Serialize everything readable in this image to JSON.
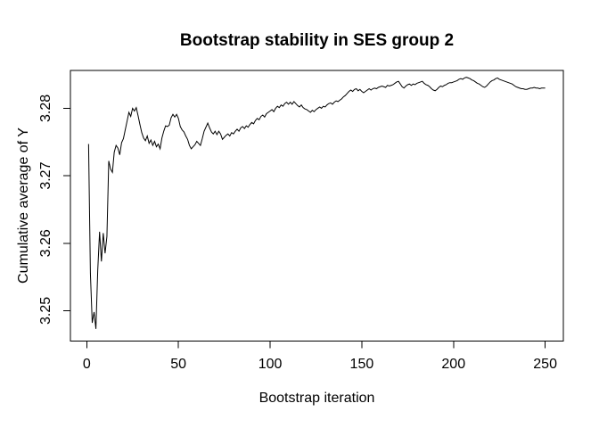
{
  "chart_data": {
    "type": "line",
    "title": "Bootstrap stability in SES group 2",
    "xlabel": "Bootstrap iteration",
    "ylabel": "Cumulative average of Y",
    "x_ticks": [
      0,
      50,
      100,
      150,
      200,
      250
    ],
    "y_ticks": [
      3.25,
      3.26,
      3.27,
      3.28
    ],
    "xlim": [
      -8.9,
      259.9
    ],
    "ylim": [
      3.2455,
      3.28561
    ],
    "grid": false,
    "legend": "none",
    "line_color": "#000000",
    "background_color": "#ffffff",
    "x_start": 1,
    "series": [
      {
        "name": "cumulative average of Y",
        "values": [
          3.2747,
          3.2555,
          3.2482,
          3.2498,
          3.2473,
          3.256,
          3.2617,
          3.2573,
          3.2615,
          3.2585,
          3.261,
          3.2722,
          3.271,
          3.2705,
          3.2735,
          3.2745,
          3.2741,
          3.2731,
          3.2749,
          3.2755,
          3.2768,
          3.2781,
          3.2794,
          3.2788,
          3.28,
          3.2796,
          3.2801,
          3.2789,
          3.2776,
          3.2764,
          3.2756,
          3.2752,
          3.2759,
          3.2748,
          3.2753,
          3.2745,
          3.2751,
          3.2743,
          3.2747,
          3.274,
          3.2756,
          3.2766,
          3.2774,
          3.2773,
          3.2775,
          3.2786,
          3.2791,
          3.2787,
          3.2791,
          3.2785,
          3.2773,
          3.2768,
          3.2765,
          3.2759,
          3.2754,
          3.2745,
          3.274,
          3.2743,
          3.2746,
          3.2751,
          3.2748,
          3.2745,
          3.2755,
          3.2766,
          3.2772,
          3.2778,
          3.2771,
          3.2765,
          3.2762,
          3.2766,
          3.2761,
          3.2766,
          3.2762,
          3.2754,
          3.2757,
          3.276,
          3.2762,
          3.2759,
          3.2764,
          3.2762,
          3.2766,
          3.2769,
          3.2766,
          3.2771,
          3.2773,
          3.277,
          3.2774,
          3.2772,
          3.2776,
          3.2779,
          3.2777,
          3.2782,
          3.2785,
          3.2783,
          3.2788,
          3.279,
          3.2787,
          3.2792,
          3.2794,
          3.2796,
          3.2798,
          3.2795,
          3.28,
          3.2803,
          3.2801,
          3.2805,
          3.2803,
          3.2807,
          3.2809,
          3.2806,
          3.2809,
          3.2806,
          3.281,
          3.2807,
          3.2804,
          3.2802,
          3.2805,
          3.2801,
          3.2799,
          3.2798,
          3.2796,
          3.2794,
          3.2797,
          3.2795,
          3.2798,
          3.28,
          3.2802,
          3.28,
          3.2803,
          3.2802,
          3.2805,
          3.2807,
          3.2808,
          3.2806,
          3.2809,
          3.2811,
          3.281,
          3.2812,
          3.2814,
          3.2817,
          3.2819,
          3.2822,
          3.2825,
          3.2827,
          3.2825,
          3.2828,
          3.2829,
          3.2826,
          3.2828,
          3.2825,
          3.2823,
          3.2825,
          3.2827,
          3.2829,
          3.2827,
          3.2829,
          3.283,
          3.2829,
          3.2831,
          3.2832,
          3.2833,
          3.2832,
          3.2831,
          3.2834,
          3.2833,
          3.2834,
          3.2835,
          3.2837,
          3.2839,
          3.284,
          3.2836,
          3.2832,
          3.283,
          3.2833,
          3.2835,
          3.2836,
          3.2834,
          3.2836,
          3.2835,
          3.2837,
          3.2838,
          3.2839,
          3.284,
          3.2837,
          3.2835,
          3.2834,
          3.2832,
          3.2829,
          3.2827,
          3.2826,
          3.2828,
          3.2831,
          3.2833,
          3.2832,
          3.2834,
          3.2835,
          3.2837,
          3.2838,
          3.2838,
          3.2839,
          3.284,
          3.2841,
          3.2843,
          3.2844,
          3.2843,
          3.2845,
          3.2846,
          3.2845,
          3.2844,
          3.2842,
          3.2841,
          3.2839,
          3.2837,
          3.2836,
          3.2834,
          3.2832,
          3.2831,
          3.2833,
          3.2836,
          3.2839,
          3.2841,
          3.2842,
          3.2844,
          3.2845,
          3.2843,
          3.2842,
          3.2841,
          3.284,
          3.2839,
          3.2838,
          3.2837,
          3.2836,
          3.2834,
          3.2832,
          3.2831,
          3.283,
          3.2829,
          3.2829,
          3.2828,
          3.2828,
          3.2829,
          3.283,
          3.283,
          3.2831,
          3.283,
          3.283,
          3.2829,
          3.283,
          3.283,
          3.283
        ]
      }
    ]
  }
}
